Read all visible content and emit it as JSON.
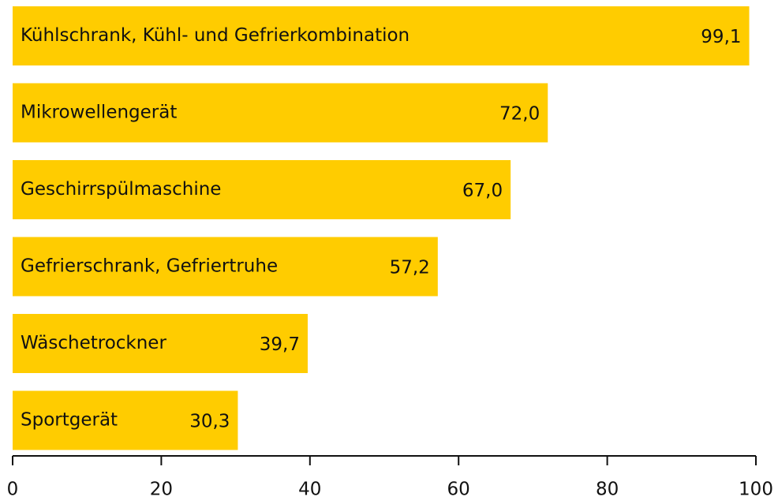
{
  "chart_data": {
    "type": "bar",
    "orientation": "horizontal",
    "categories": [
      "Kühlschrank, Kühl- und Gefrierkombination",
      "Mikrowellengerät",
      "Geschirrspülmaschine",
      "Gefrierschrank, Gefriertruhe",
      "Wäschetrockner",
      "Sportgerät"
    ],
    "values": [
      99.1,
      72.0,
      67.0,
      57.2,
      39.7,
      30.3
    ],
    "value_labels": [
      "99,1",
      "72,0",
      "67,0",
      "57,2",
      "39,7",
      "30,3"
    ],
    "color": "#ffcc00",
    "xlim": [
      0,
      100
    ],
    "xticks": [
      0,
      20,
      40,
      60,
      80,
      100
    ],
    "grid": false
  }
}
